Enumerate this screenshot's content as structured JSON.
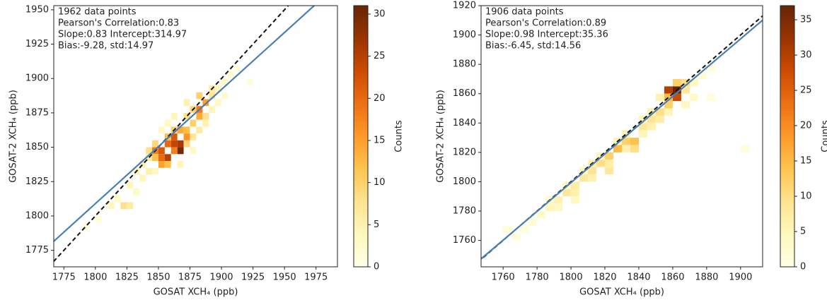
{
  "chart_data": [
    {
      "type": "histogram2d",
      "annotations": [
        "1962 data points",
        "Pearson's Correlation:0.83",
        "Slope:0.83 Intercept:314.97",
        "Bias:-9.28, std:14.97"
      ],
      "xlabel": "GOSAT XCH₄ (ppb)",
      "ylabel": "GOSAT-2 XCH₄ (ppb)",
      "xlim": [
        1767,
        1992
      ],
      "ylim": [
        1763,
        1953
      ],
      "xticks": [
        1775,
        1800,
        1825,
        1850,
        1875,
        1900,
        1925,
        1950,
        1975
      ],
      "yticks": [
        1775,
        1800,
        1825,
        1850,
        1875,
        1900,
        1925,
        1950
      ],
      "bin_size": 5,
      "colormap": "YlOrBr",
      "cells": [
        [
          1845,
          1845,
          18
        ],
        [
          1850,
          1845,
          22
        ],
        [
          1850,
          1840,
          20
        ],
        [
          1855,
          1840,
          25
        ],
        [
          1855,
          1850,
          20
        ],
        [
          1860,
          1850,
          24
        ],
        [
          1860,
          1855,
          22
        ],
        [
          1865,
          1845,
          30
        ],
        [
          1865,
          1850,
          26
        ],
        [
          1860,
          1845,
          18
        ],
        [
          1850,
          1835,
          15
        ],
        [
          1855,
          1835,
          12
        ],
        [
          1845,
          1840,
          12
        ],
        [
          1870,
          1855,
          16
        ],
        [
          1870,
          1860,
          12
        ],
        [
          1875,
          1865,
          10
        ],
        [
          1880,
          1870,
          14
        ],
        [
          1880,
          1875,
          18
        ],
        [
          1885,
          1880,
          15
        ],
        [
          1875,
          1875,
          9
        ],
        [
          1885,
          1870,
          8
        ],
        [
          1890,
          1885,
          7
        ],
        [
          1890,
          1890,
          6
        ],
        [
          1880,
          1885,
          10
        ],
        [
          1870,
          1870,
          8
        ],
        [
          1865,
          1860,
          14
        ],
        [
          1860,
          1860,
          10
        ],
        [
          1855,
          1855,
          12
        ],
        [
          1845,
          1850,
          9
        ],
        [
          1840,
          1845,
          8
        ],
        [
          1840,
          1840,
          6
        ],
        [
          1835,
          1835,
          5
        ],
        [
          1830,
          1830,
          4
        ],
        [
          1825,
          1820,
          4
        ],
        [
          1820,
          1805,
          8
        ],
        [
          1825,
          1805,
          6
        ],
        [
          1815,
          1810,
          3
        ],
        [
          1810,
          1805,
          4
        ],
        [
          1830,
          1815,
          3
        ],
        [
          1835,
          1825,
          4
        ],
        [
          1840,
          1830,
          5
        ],
        [
          1870,
          1850,
          9
        ],
        [
          1875,
          1855,
          7
        ],
        [
          1880,
          1860,
          6
        ],
        [
          1885,
          1865,
          5
        ],
        [
          1890,
          1875,
          4
        ],
        [
          1895,
          1880,
          3
        ],
        [
          1895,
          1890,
          4
        ],
        [
          1900,
          1895,
          3
        ],
        [
          1905,
          1900,
          2
        ],
        [
          1900,
          1885,
          2
        ],
        [
          1910,
          1905,
          1
        ],
        [
          1860,
          1870,
          4
        ],
        [
          1855,
          1865,
          3
        ],
        [
          1870,
          1880,
          5
        ],
        [
          1850,
          1860,
          3
        ],
        [
          1800,
          1795,
          1
        ],
        [
          1790,
          1790,
          1
        ],
        [
          1920,
          1895,
          1
        ],
        [
          1875,
          1845,
          3
        ],
        [
          1865,
          1835,
          4
        ],
        [
          1845,
          1830,
          3
        ]
      ],
      "fit_line": {
        "slope": 0.83,
        "intercept": 314.97,
        "color": "#4a7fb5"
      },
      "identity_line": {
        "color": "#111111",
        "dashed": true
      },
      "colorbar": {
        "label": "Counts",
        "lim": [
          0,
          31
        ],
        "ticks": [
          0,
          5,
          10,
          15,
          20,
          25,
          30
        ]
      }
    },
    {
      "type": "histogram2d",
      "annotations": [
        "1906 data points",
        "Pearson's Correlation:0.89",
        "Slope:0.98 Intercept:35.36",
        "Bias:-6.45, std:14.56"
      ],
      "xlabel": "GOSAT XCH₄ (ppb)",
      "ylabel": "GOSAT-2 XCH₄ (ppb)",
      "xlim": [
        1747,
        1913
      ],
      "ylim": [
        1742,
        1920
      ],
      "xticks": [
        1760,
        1780,
        1800,
        1820,
        1840,
        1860,
        1880,
        1900
      ],
      "yticks": [
        1760,
        1780,
        1800,
        1820,
        1840,
        1860,
        1880,
        1900,
        1920
      ],
      "bin_size": 5,
      "colormap": "YlOrBr",
      "cells": [
        [
          1855,
          1860,
          30
        ],
        [
          1860,
          1860,
          37
        ],
        [
          1860,
          1855,
          28
        ],
        [
          1855,
          1855,
          15
        ],
        [
          1855,
          1850,
          12
        ],
        [
          1850,
          1845,
          10
        ],
        [
          1845,
          1840,
          9
        ],
        [
          1840,
          1835,
          8
        ],
        [
          1835,
          1825,
          14
        ],
        [
          1830,
          1825,
          12
        ],
        [
          1835,
          1820,
          10
        ],
        [
          1825,
          1820,
          15
        ],
        [
          1820,
          1815,
          12
        ],
        [
          1815,
          1810,
          10
        ],
        [
          1810,
          1805,
          9
        ],
        [
          1820,
          1805,
          8
        ],
        [
          1805,
          1800,
          8
        ],
        [
          1800,
          1795,
          7
        ],
        [
          1795,
          1790,
          8
        ],
        [
          1790,
          1785,
          6
        ],
        [
          1800,
          1790,
          6
        ],
        [
          1785,
          1780,
          5
        ],
        [
          1780,
          1775,
          3
        ],
        [
          1775,
          1770,
          2
        ],
        [
          1770,
          1765,
          1
        ],
        [
          1865,
          1865,
          10
        ],
        [
          1860,
          1865,
          12
        ],
        [
          1865,
          1860,
          8
        ],
        [
          1850,
          1855,
          6
        ],
        [
          1845,
          1845,
          6
        ],
        [
          1840,
          1840,
          5
        ],
        [
          1830,
          1830,
          6
        ],
        [
          1825,
          1825,
          5
        ],
        [
          1815,
          1815,
          5
        ],
        [
          1810,
          1810,
          6
        ],
        [
          1805,
          1805,
          4
        ],
        [
          1795,
          1795,
          4
        ],
        [
          1785,
          1785,
          3
        ],
        [
          1850,
          1840,
          7
        ],
        [
          1845,
          1835,
          6
        ],
        [
          1840,
          1830,
          5
        ],
        [
          1830,
          1820,
          6
        ],
        [
          1820,
          1810,
          7
        ],
        [
          1810,
          1800,
          6
        ],
        [
          1800,
          1785,
          4
        ],
        [
          1790,
          1780,
          4
        ],
        [
          1870,
          1865,
          4
        ],
        [
          1870,
          1855,
          3
        ],
        [
          1865,
          1850,
          4
        ],
        [
          1855,
          1845,
          5
        ],
        [
          1875,
          1870,
          2
        ],
        [
          1880,
          1875,
          1
        ],
        [
          1760,
          1765,
          1
        ],
        [
          1765,
          1760,
          1
        ],
        [
          1880,
          1855,
          1
        ],
        [
          1900,
          1820,
          1
        ]
      ],
      "fit_line": {
        "slope": 0.98,
        "intercept": 35.36,
        "color": "#4a7fb5"
      },
      "identity_line": {
        "color": "#111111",
        "dashed": true
      },
      "colorbar": {
        "label": "Counts",
        "lim": [
          0,
          37
        ],
        "ticks": [
          0,
          5,
          10,
          15,
          20,
          25,
          30,
          35
        ]
      }
    }
  ]
}
